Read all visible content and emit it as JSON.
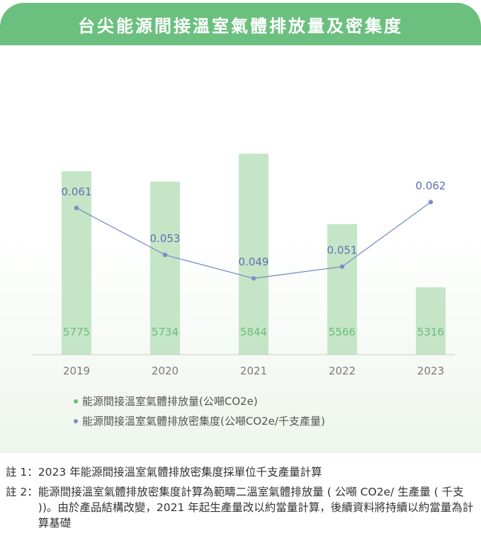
{
  "header": {
    "title": "台尖能源間接溫室氣體排放量及密集度"
  },
  "chart_data": {
    "type": "bar+line",
    "categories": [
      "2019",
      "2020",
      "2021",
      "2022",
      "2023"
    ],
    "series": [
      {
        "name": "能源間接溫室氣體排放量(公噸CO2e)",
        "type": "bar",
        "color": "#c5e5c7",
        "label_color": "#6cbe78",
        "values": [
          5775,
          5734,
          5844,
          5566,
          5316
        ],
        "ylim": [
          5050,
          5850
        ]
      },
      {
        "name": "能源間接溫室氣體排放密集度(公噸CO2e/千支產量)",
        "type": "line",
        "color": "#7b8fc4",
        "values_text": [
          "0.061",
          "0.053",
          "0.049",
          "0.051",
          "0.062"
        ],
        "values": [
          0.061,
          0.053,
          0.049,
          0.051,
          0.062
        ],
        "ylim": [
          0.036,
          0.0705
        ]
      }
    ],
    "legend_position": "bottom",
    "grid": false
  },
  "legend": {
    "items": [
      {
        "label": "能源間接溫室氣體排放量(公噸CO2e)",
        "color": "#6cbe78"
      },
      {
        "label": "能源間接溫室氣體排放密集度(公噸CO2e/千支產量)",
        "color": "#7b8fc4"
      }
    ]
  },
  "notes": [
    {
      "label": "註 1：",
      "text": "2023 年能源間接溫室氣體排放密集度採單位千支產量計算"
    },
    {
      "label": "註 2：",
      "text": "能源間接溫室氣體排放密集度計算為範疇二溫室氣體排放量 ( 公噸 CO2e/ 生產量 ( 千支 ))。由於產品結構改變，2021 年起生產量改以約當量計算，後續資料將持續以約當量為計算基礎"
    }
  ]
}
